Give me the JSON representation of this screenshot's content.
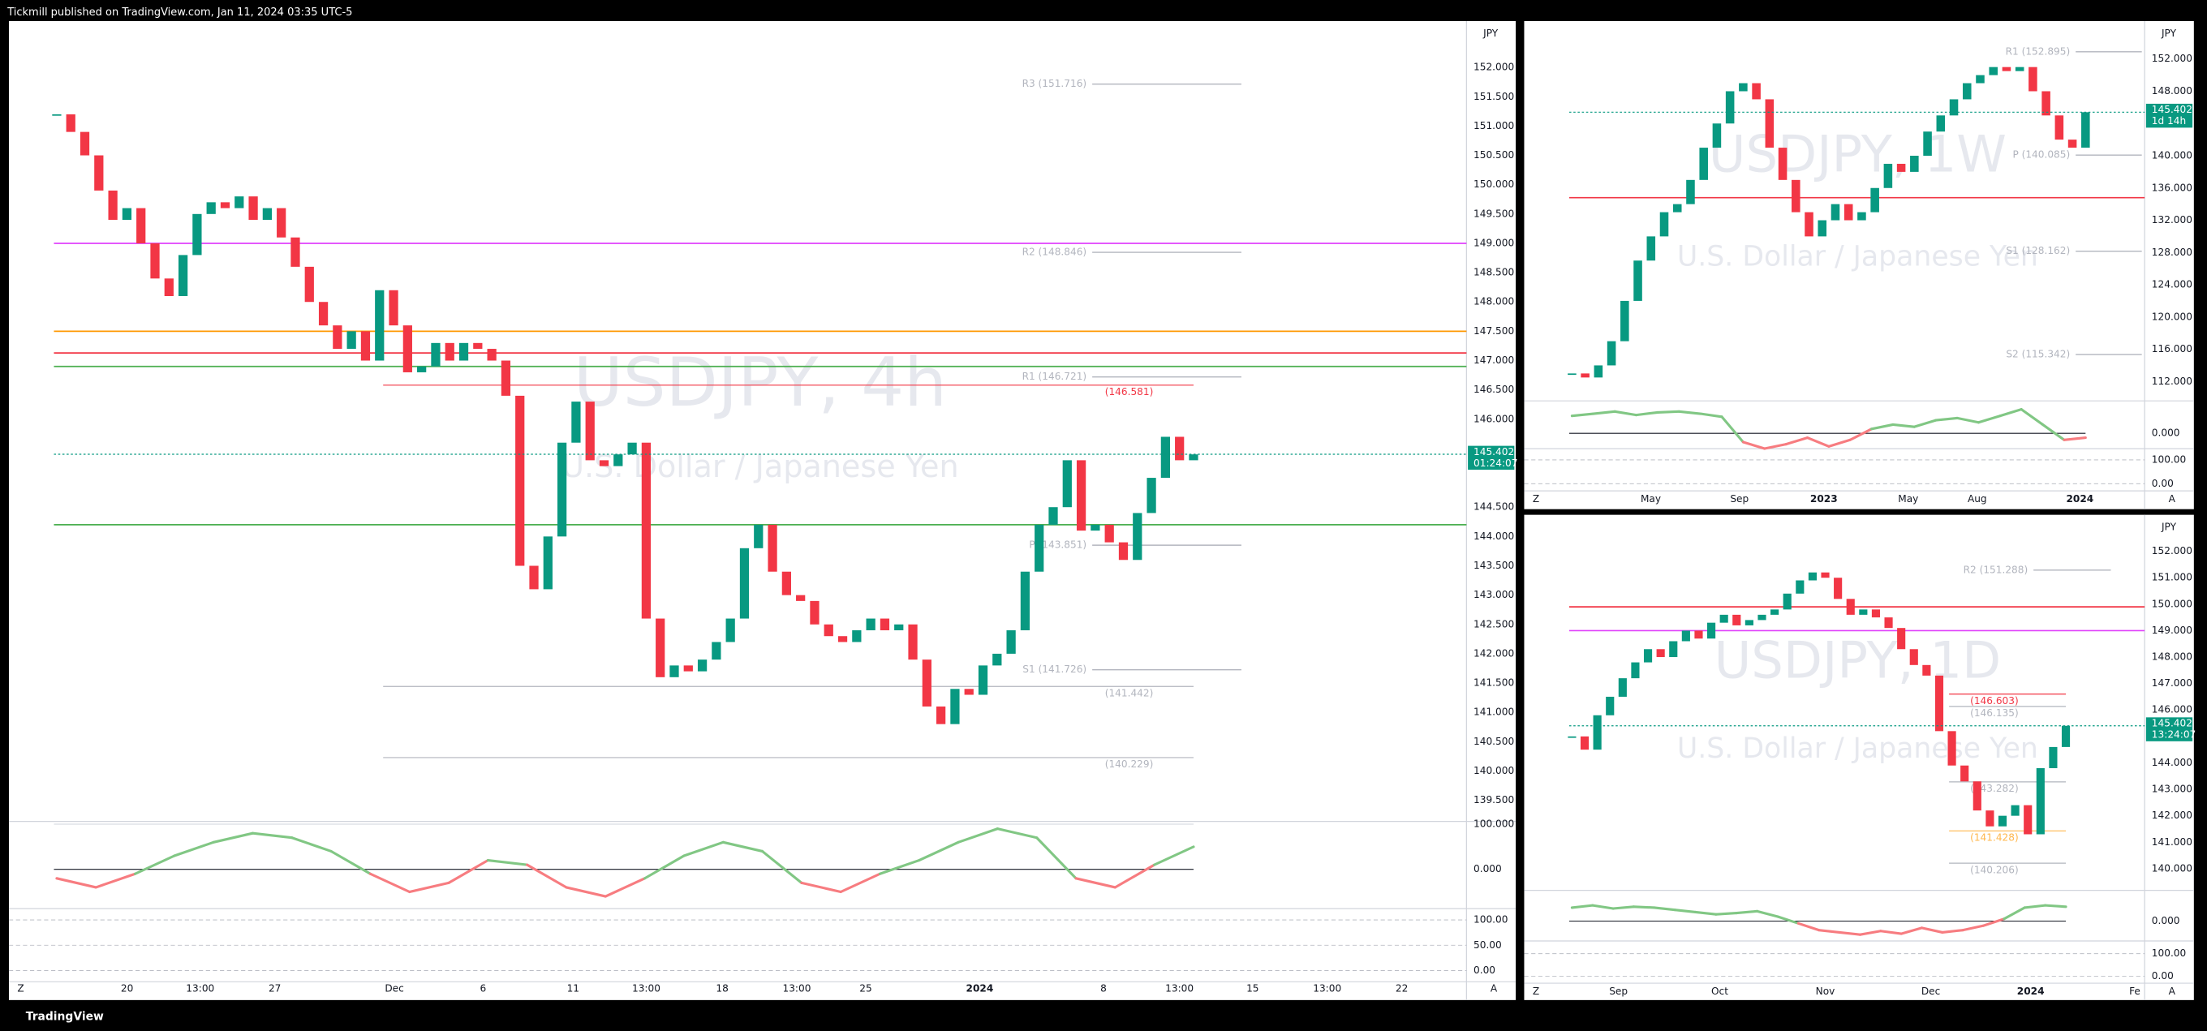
{
  "header": "Tickmill published on TradingView.com, Jan 11, 2024 03:35 UTC-5",
  "footer": "TradingView",
  "panels": [
    {
      "type": "candlestick",
      "symbol": "USDJPY, 4h",
      "description": "U.S. Dollar / Japanese Yen",
      "currency": "JPY",
      "up_color": "#089981",
      "down_color": "#f23645",
      "ylim": [
        139.14,
        152.79
      ],
      "yticks": [
        {
          "value": 152,
          "label": "152.000"
        },
        {
          "value": 151.5,
          "label": "151.500"
        },
        {
          "value": 151,
          "label": "151.000"
        },
        {
          "value": 150.5,
          "label": "150.500"
        },
        {
          "value": 150,
          "label": "150.000"
        },
        {
          "value": 149.5,
          "label": "149.500"
        },
        {
          "value": 149,
          "label": "149.000"
        },
        {
          "value": 148.5,
          "label": "148.500"
        },
        {
          "value": 148,
          "label": "148.000"
        },
        {
          "value": 147.5,
          "label": "147.500"
        },
        {
          "value": 147,
          "label": "147.000"
        },
        {
          "value": 146.5,
          "label": "146.500"
        },
        {
          "value": 146,
          "label": "146.000"
        },
        {
          "value": 144.5,
          "label": "144.500"
        },
        {
          "value": 144,
          "label": "144.000"
        },
        {
          "value": 143.5,
          "label": "143.500"
        },
        {
          "value": 143,
          "label": "143.000"
        },
        {
          "value": 142.5,
          "label": "142.500"
        },
        {
          "value": 142,
          "label": "142.000"
        },
        {
          "value": 141.5,
          "label": "141.500"
        },
        {
          "value": 141,
          "label": "141.000"
        },
        {
          "value": 140.5,
          "label": "140.500"
        },
        {
          "value": 140,
          "label": "140.000"
        },
        {
          "value": 139.5,
          "label": "139.500"
        }
      ],
      "closes": [
        151.2,
        150.9,
        150.5,
        149.9,
        149.4,
        149.6,
        149.0,
        148.4,
        148.1,
        148.8,
        149.5,
        149.7,
        149.6,
        149.8,
        149.4,
        149.6,
        149.1,
        148.6,
        148.0,
        147.6,
        147.2,
        147.5,
        147.0,
        148.2,
        147.6,
        146.8,
        146.9,
        147.3,
        147.0,
        147.3,
        147.2,
        147.0,
        146.4,
        143.5,
        143.1,
        144.0,
        145.6,
        146.3,
        145.3,
        145.2,
        145.4,
        145.6,
        142.6,
        141.6,
        141.8,
        141.7,
        141.9,
        142.2,
        142.6,
        143.8,
        144.2,
        143.4,
        143.0,
        142.9,
        142.5,
        142.3,
        142.2,
        142.4,
        142.6,
        142.4,
        142.5,
        141.9,
        141.1,
        140.8,
        141.4,
        141.3,
        141.8,
        142.0,
        142.4,
        143.4,
        144.2,
        144.5,
        145.3,
        144.1,
        144.2,
        143.9,
        143.6,
        144.4,
        145.0,
        145.7,
        145.3,
        145.4
      ],
      "price_tag": {
        "value": 145.402,
        "label": "145.402"
      },
      "countdown": "01:24:07",
      "pivots": [
        {
          "label": "R3 (151.716)",
          "value": 151.716,
          "color": "#b2b5be"
        },
        {
          "label": "R2 (148.846)",
          "value": 148.846,
          "color": "#b2b5be"
        },
        {
          "label": "R1 (146.721)",
          "value": 146.721,
          "color": "#b2b5be"
        },
        {
          "label": "P (143.851)",
          "value": 143.851,
          "color": "#b2b5be"
        },
        {
          "label": "S1 (141.726)",
          "value": 141.726,
          "color": "#b2b5be"
        }
      ],
      "marks": [
        {
          "label": "(146.581)",
          "value": 146.581,
          "color": "#f23645"
        },
        {
          "label": "(141.442)",
          "value": 141.442,
          "color": "#b2b5be"
        },
        {
          "label": "(140.229)",
          "value": 140.229,
          "color": "#b2b5be"
        }
      ],
      "lines": [
        {
          "value": 147.13,
          "color": "#f23645"
        },
        {
          "value": 149.0,
          "color": "#e040fb"
        },
        {
          "value": 147.5,
          "color": "#ff9800"
        },
        {
          "value": 146.9,
          "color": "#4caf50"
        },
        {
          "value": 144.2,
          "color": "#4caf50"
        }
      ],
      "osc_ylim": [
        -84,
        103
      ],
      "osc_ticks": [
        {
          "value": 100,
          "label": "100.000"
        },
        {
          "value": 0,
          "label": "0.000"
        }
      ],
      "osc": [
        -20,
        -40,
        -10,
        30,
        60,
        80,
        70,
        40,
        -10,
        -50,
        -30,
        20,
        10,
        -40,
        -60,
        -20,
        30,
        60,
        40,
        -30,
        -50,
        -10,
        20,
        60,
        90,
        70,
        -20,
        -40,
        10,
        50
      ],
      "stoch_ylim": [
        -19.4,
        116.7
      ],
      "stoch_ticks": [
        {
          "value": 100,
          "label": "100.00"
        },
        {
          "value": 50,
          "label": "50.00"
        },
        {
          "value": 0,
          "label": "0.00"
        }
      ],
      "xlabels": [
        "20",
        "13:00",
        "27",
        "Dec",
        "6",
        "11",
        "13:00",
        "18",
        "13:00",
        "25",
        "2024",
        "8",
        "13:00",
        "15",
        "13:00",
        "22"
      ]
    },
    {
      "type": "candlestick",
      "symbol": "USDJPY, 1W",
      "description": "U.S. Dollar / Japanese Yen",
      "currency": "JPY",
      "up_color": "#089981",
      "down_color": "#f23645",
      "ylim": [
        109.6,
        156.7
      ],
      "yticks": [
        {
          "value": 152,
          "label": "152.000"
        },
        {
          "value": 148,
          "label": "148.000"
        },
        {
          "value": 140,
          "label": "140.000"
        },
        {
          "value": 136,
          "label": "136.000"
        },
        {
          "value": 132,
          "label": "132.000"
        },
        {
          "value": 128,
          "label": "128.000"
        },
        {
          "value": 124,
          "label": "124.000"
        },
        {
          "value": 120,
          "label": "120.000"
        },
        {
          "value": 116,
          "label": "116.000"
        },
        {
          "value": 112,
          "label": "112.000"
        }
      ],
      "closes": [
        113,
        112.5,
        114,
        117,
        122,
        127,
        130,
        133,
        134,
        137,
        141,
        144,
        148,
        149,
        147,
        141,
        137,
        133,
        130,
        132,
        134,
        132,
        133,
        136,
        139,
        138,
        140,
        143,
        145,
        147,
        149,
        150,
        151,
        150.5,
        151,
        148,
        145,
        142,
        141,
        145.4
      ],
      "price_tag": {
        "value": 145.402,
        "label": "145.402"
      },
      "countdown": "1d 14h",
      "pivots": [
        {
          "label": "R1 (152.895)",
          "value": 152.895,
          "color": "#b2b5be"
        },
        {
          "label": "P (140.085)",
          "value": 140.085,
          "color": "#b2b5be"
        },
        {
          "label": "S1 (128.162)",
          "value": 128.162,
          "color": "#b2b5be"
        },
        {
          "label": "S2 (115.342)",
          "value": 115.342,
          "color": "#b2b5be"
        }
      ],
      "marks": [],
      "lines": [
        {
          "value": 134.8,
          "color": "#f23645"
        }
      ],
      "osc_ylim": [
        -32,
        68
      ],
      "osc_ticks": [
        {
          "value": 0,
          "label": "0.000"
        }
      ],
      "osc": [
        40,
        45,
        50,
        42,
        48,
        50,
        45,
        38,
        -20,
        -35,
        -25,
        -10,
        -30,
        -15,
        10,
        20,
        15,
        30,
        35,
        25,
        40,
        55,
        20,
        -15,
        -10
      ],
      "stoch_ylim": [
        -24,
        141
      ],
      "stoch_ticks": [
        {
          "value": 100,
          "label": "100.00"
        },
        {
          "value": 0,
          "label": "0.00"
        }
      ],
      "xlabels": [
        "May",
        "Sep",
        "2023",
        "May",
        "Aug",
        "2024"
      ]
    },
    {
      "type": "candlestick",
      "symbol": "USDJPY, 1D",
      "description": "U.S. Dollar / Japanese Yen",
      "currency": "JPY",
      "up_color": "#089981",
      "down_color": "#f23645",
      "ylim": [
        139.18,
        153.38
      ],
      "yticks": [
        {
          "value": 152,
          "label": "152.000"
        },
        {
          "value": 151,
          "label": "151.000"
        },
        {
          "value": 150,
          "label": "150.000"
        },
        {
          "value": 149,
          "label": "149.000"
        },
        {
          "value": 148,
          "label": "148.000"
        },
        {
          "value": 147,
          "label": "147.000"
        },
        {
          "value": 146,
          "label": "146.000"
        },
        {
          "value": 144,
          "label": "144.000"
        },
        {
          "value": 143,
          "label": "143.000"
        },
        {
          "value": 142,
          "label": "142.000"
        },
        {
          "value": 141,
          "label": "141.000"
        },
        {
          "value": 140,
          "label": "140.000"
        }
      ],
      "closes": [
        145,
        144.5,
        145.8,
        146.5,
        147.2,
        147.8,
        148.3,
        148.0,
        148.6,
        149.0,
        148.7,
        149.3,
        149.6,
        149.2,
        149.4,
        149.6,
        149.8,
        150.4,
        150.9,
        151.2,
        151.0,
        150.2,
        149.6,
        149.8,
        149.5,
        149.1,
        148.3,
        147.7,
        147.3,
        145.2,
        143.9,
        143.3,
        142.2,
        141.6,
        142.0,
        142.4,
        141.3,
        143.8,
        144.6,
        145.4
      ],
      "price_tag": {
        "value": 145.402,
        "label": "145.402"
      },
      "countdown": "13:24:07",
      "pivots": [
        {
          "label": "R2 (151.288)",
          "value": 151.288,
          "color": "#b2b5be"
        }
      ],
      "marks": [
        {
          "label": "(146.603)",
          "value": 146.603,
          "color": "#f23645"
        },
        {
          "label": "(146.135)",
          "value": 146.135,
          "color": "#b2b5be"
        },
        {
          "label": "(143.282)",
          "value": 143.282,
          "color": "#b2b5be"
        },
        {
          "label": "(141.428)",
          "value": 141.428,
          "color": "#ffb74d"
        },
        {
          "label": "(140.206)",
          "value": 140.206,
          "color": "#b2b5be"
        }
      ],
      "lines": [
        {
          "value": 149.9,
          "color": "#f23645"
        },
        {
          "value": 149.0,
          "color": "#e040fb"
        }
      ],
      "osc_ylim": [
        -41,
        59
      ],
      "osc_ticks": [
        {
          "value": 0,
          "label": "0.000"
        }
      ],
      "osc": [
        30,
        35,
        28,
        32,
        30,
        25,
        20,
        15,
        18,
        22,
        10,
        -5,
        -20,
        -25,
        -30,
        -22,
        -28,
        -15,
        -25,
        -20,
        -10,
        5,
        30,
        35,
        32
      ],
      "stoch_ylim": [
        -25,
        150
      ],
      "stoch_ticks": [
        {
          "value": 100,
          "label": "100.00"
        },
        {
          "value": 0,
          "label": "0.00"
        }
      ],
      "xlabels": [
        "Sep",
        "Oct",
        "Nov",
        "Dec",
        "2024",
        "Fe"
      ]
    }
  ],
  "buttons": [
    "Z",
    "A"
  ]
}
